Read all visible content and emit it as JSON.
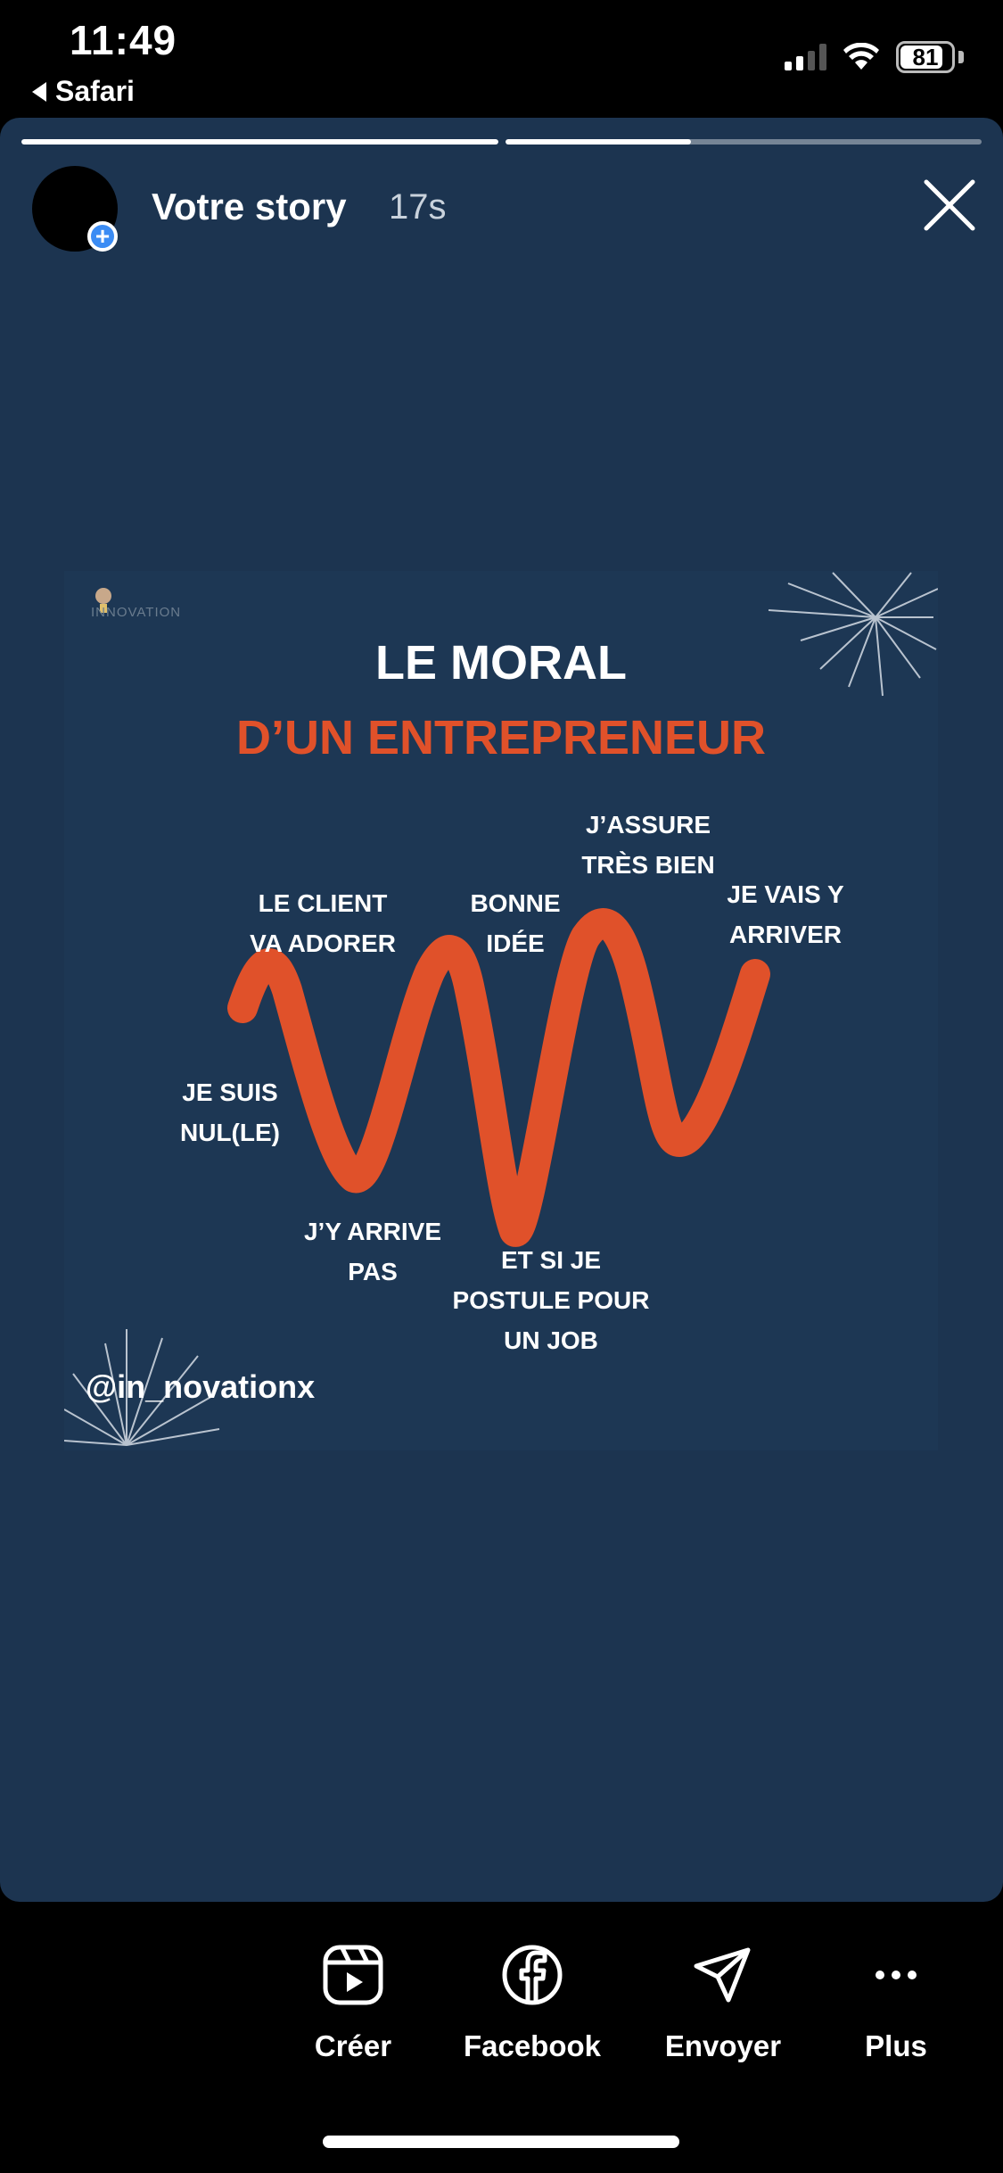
{
  "status_bar": {
    "time": "11:49",
    "back_label": "Safari",
    "battery": "81"
  },
  "story": {
    "progress": [
      1.0,
      0.39
    ],
    "title": "Votre story",
    "elapsed": "17s",
    "handle": "@in_novationx"
  },
  "post": {
    "brand": "INNOVATION",
    "title_line1": "LE MORAL",
    "title_line2": "D’UN ENTREPRENEUR",
    "labels": {
      "je_suis_nul": "JE SUIS\nNUL(LE)",
      "le_client": "LE CLIENT\nVA ADORER",
      "jy_arrive_pas": "J’Y ARRIVE\nPAS",
      "bonne_idee": "BONNE\nIDÉE",
      "et_si_je": "ET SI JE\nPOSTULE POUR\nUN JOB",
      "jassure": "J’ASSURE\nTRÈS BIEN",
      "je_vais": "JE VAIS Y\nARRIVER"
    },
    "accent_color": "#e0512a",
    "background_color": "#1d3754"
  },
  "actions": [
    {
      "label": "Créer",
      "icon": "reels-icon"
    },
    {
      "label": "Facebook",
      "icon": "facebook-icon"
    },
    {
      "label": "Envoyer",
      "icon": "send-icon"
    },
    {
      "label": "Plus",
      "icon": "more-icon"
    }
  ]
}
